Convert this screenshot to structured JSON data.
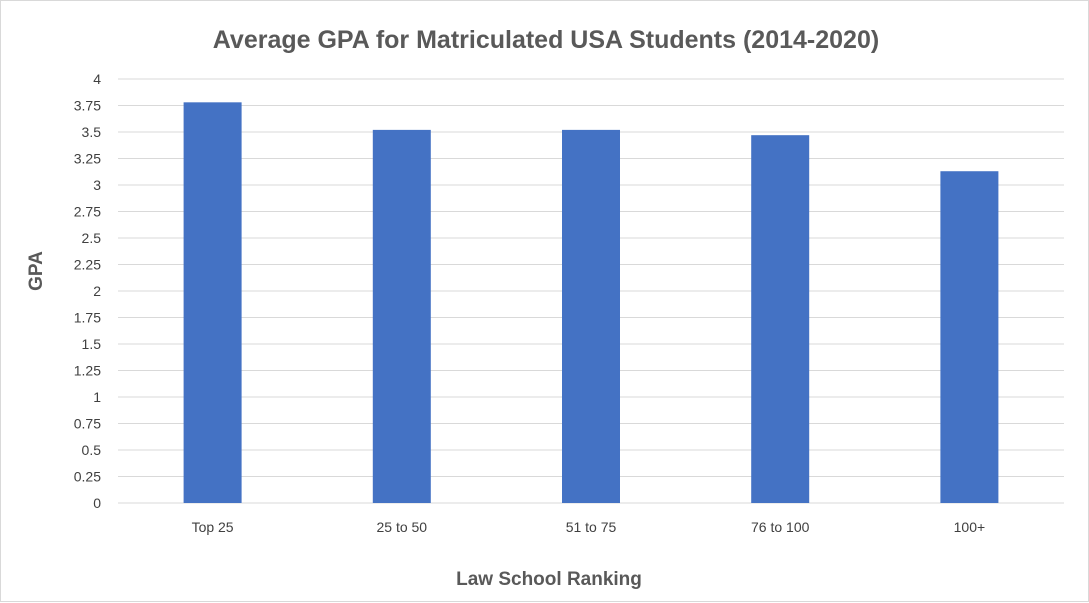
{
  "chart_data": {
    "type": "bar",
    "title": "Average GPA for Matriculated USA Students (2014-2020)",
    "xlabel": "Law School Ranking",
    "ylabel": "GPA",
    "categories": [
      "Top 25",
      "25 to 50",
      "51 to 75",
      "76 to 100",
      "100+"
    ],
    "values": [
      3.78,
      3.52,
      3.52,
      3.47,
      3.13
    ],
    "ylim": [
      0,
      4
    ],
    "yticks": [
      "0",
      "0.25",
      "0.5",
      "0.75",
      "1",
      "1.25",
      "1.5",
      "1.75",
      "2",
      "2.25",
      "2.5",
      "2.75",
      "3",
      "3.25",
      "3.5",
      "3.75",
      "4"
    ],
    "grid": true,
    "bar_color": "#4472C4",
    "grid_color": "#d9d9d9"
  }
}
